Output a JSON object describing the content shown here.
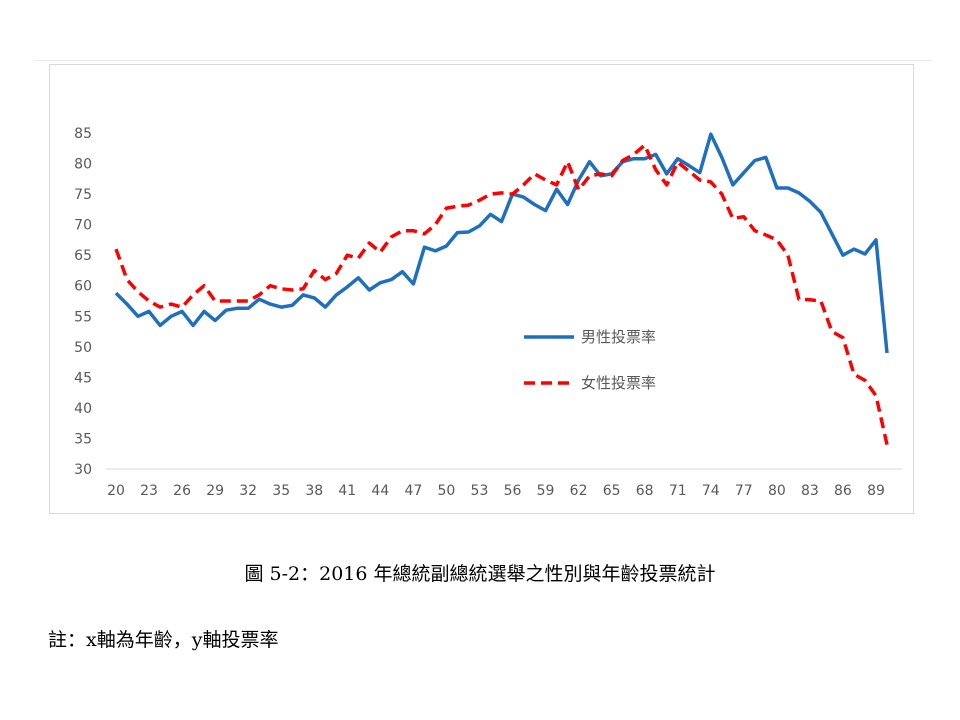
{
  "figure": {
    "caption": "圖 5-2：2016 年總統副總統選舉之性別與年齡投票統計",
    "note": "註：x軸為年齡，y軸投票率"
  },
  "chart_data": {
    "type": "line",
    "title": "",
    "xlabel": "",
    "ylabel": "",
    "ylim": [
      30,
      85
    ],
    "yticks": [
      30,
      35,
      40,
      45,
      50,
      55,
      60,
      65,
      70,
      75,
      80,
      85
    ],
    "xtick_labels": [
      "20",
      "23",
      "26",
      "29",
      "32",
      "35",
      "38",
      "41",
      "44",
      "47",
      "50",
      "53",
      "56",
      "59",
      "62",
      "65",
      "68",
      "71",
      "74",
      "77",
      "80",
      "83",
      "86",
      "89"
    ],
    "grid": false,
    "legend_position": "center-right",
    "x": [
      20,
      21,
      22,
      23,
      24,
      25,
      26,
      27,
      28,
      29,
      30,
      31,
      32,
      33,
      34,
      35,
      36,
      37,
      38,
      39,
      40,
      41,
      42,
      43,
      44,
      45,
      46,
      47,
      48,
      49,
      50,
      51,
      52,
      53,
      54,
      55,
      56,
      57,
      58,
      59,
      60,
      61,
      62,
      63,
      64,
      65,
      66,
      67,
      68,
      69,
      70,
      71,
      72,
      73,
      74,
      75,
      76,
      77,
      78,
      79,
      80,
      81,
      82,
      83,
      84,
      85,
      86,
      87,
      88,
      89,
      90
    ],
    "series": [
      {
        "name": "男性投票率",
        "color": "#1f6fbf",
        "style": "solid",
        "values": [
          58.8,
          57,
          55,
          55.8,
          53.5,
          55,
          55.8,
          53.5,
          55.8,
          54.3,
          56,
          56.3,
          56.3,
          57.8,
          57,
          56.5,
          56.8,
          58.5,
          58,
          56.5,
          58.5,
          59.8,
          61.3,
          59.3,
          60.5,
          61,
          62.3,
          60.3,
          66.3,
          65.7,
          66.5,
          68.7,
          68.8,
          69.8,
          71.7,
          70.5,
          75,
          74.5,
          73.3,
          72.3,
          75.8,
          73.3,
          77.3,
          80.3,
          78,
          78.3,
          80.3,
          80.8,
          80.8,
          81.5,
          78.3,
          80.8,
          79.7,
          78.5,
          84.8,
          81,
          76.5,
          78.5,
          80.5,
          81,
          76,
          76,
          75.2,
          73.8,
          72,
          68.5,
          65,
          66,
          65.2,
          67.5,
          49
        ]
      },
      {
        "name": "女性投票率",
        "color": "#ff0000",
        "style": "dashed",
        "values": [
          66,
          61,
          59,
          57.5,
          56.5,
          57,
          56.5,
          58.5,
          60,
          57.5,
          57.5,
          57.5,
          57.5,
          58.5,
          60,
          59.5,
          59.3,
          59.5,
          62.5,
          61,
          62,
          65,
          64.5,
          67,
          65.5,
          68,
          69,
          69,
          68.5,
          70,
          72.7,
          73,
          73.2,
          74,
          75,
          75.2,
          75,
          76.5,
          78.3,
          77.3,
          76.5,
          80.3,
          75.7,
          78,
          78.3,
          78,
          80.5,
          81.5,
          83,
          79,
          76.5,
          80.2,
          78.8,
          77.3,
          77,
          75,
          71,
          71.3,
          69,
          68.3,
          67.5,
          65,
          57.8,
          57.7,
          57.5,
          52.5,
          51.5,
          45.5,
          44.5,
          42,
          34
        ]
      }
    ]
  }
}
